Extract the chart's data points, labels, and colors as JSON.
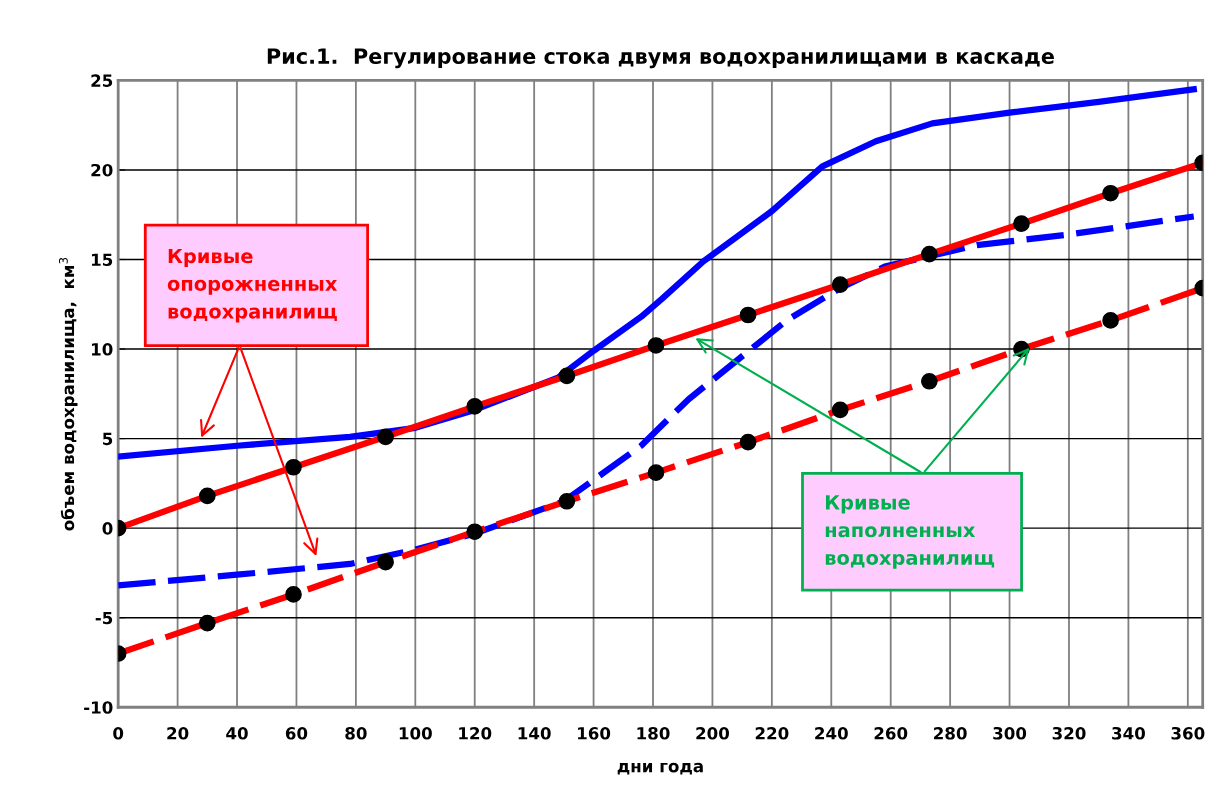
{
  "chart_data": {
    "type": "line",
    "title": "Рис.1.  Регулирование стока двумя водохранилищами в каскаде",
    "xlabel": "дни года",
    "ylabel": "объем водохранилища,  км$^{3}$",
    "xlim": [
      0,
      365
    ],
    "xticks": [
      0,
      20,
      40,
      60,
      80,
      100,
      120,
      140,
      160,
      180,
      200,
      220,
      240,
      260,
      280,
      300,
      320,
      340,
      360
    ],
    "ylim": [
      -10,
      25
    ],
    "yticks": [
      -10,
      -5,
      0,
      5,
      10,
      15,
      20,
      25
    ],
    "grid": true,
    "series": [
      {
        "color": "#0000ff",
        "line_style": "solid",
        "marker": "none",
        "x": [
          0,
          40,
          78,
          100,
          120,
          148,
          160,
          176,
          183,
          197,
          220,
          237,
          255,
          274,
          300,
          330,
          362
        ],
        "values": [
          4.0,
          4.6,
          5.1,
          5.6,
          6.6,
          8.4,
          9.9,
          11.8,
          12.8,
          14.9,
          17.7,
          20.2,
          21.6,
          22.6,
          23.2,
          23.8,
          24.5
        ]
      },
      {
        "color": "#0000ff",
        "line_style": "dashed",
        "marker": "none",
        "x": [
          0,
          40,
          78,
          100,
          120,
          150,
          176,
          192,
          201,
          225,
          243,
          258,
          289,
          320,
          362
        ],
        "values": [
          -3.2,
          -2.6,
          -2.0,
          -1.2,
          -0.3,
          1.5,
          4.6,
          7.2,
          8.4,
          11.6,
          13.4,
          14.6,
          15.8,
          16.4,
          17.4
        ]
      },
      {
        "color": "#ff0000",
        "line_style": "solid",
        "marker": "circle",
        "x": [
          0,
          30,
          59,
          90,
          120,
          151,
          181,
          212,
          243,
          273,
          304,
          334,
          365
        ],
        "values": [
          0,
          1.8,
          3.4,
          5.1,
          6.8,
          8.5,
          10.2,
          11.9,
          13.6,
          15.3,
          17.0,
          18.7,
          20.4
        ]
      },
      {
        "color": "#ff0000",
        "line_style": "dashed",
        "marker": "circle",
        "x": [
          0,
          30,
          59,
          90,
          120,
          151,
          181,
          212,
          243,
          273,
          304,
          334,
          365
        ],
        "values": [
          -7.0,
          -5.3,
          -3.7,
          -1.9,
          -0.2,
          1.5,
          3.1,
          4.8,
          6.6,
          8.2,
          10.0,
          11.6,
          13.4
        ]
      }
    ],
    "annotations": [
      "Кривые\nопорожненных\nводохранилищ",
      "Кривые\nнаполненных\nводохранилищ"
    ]
  }
}
